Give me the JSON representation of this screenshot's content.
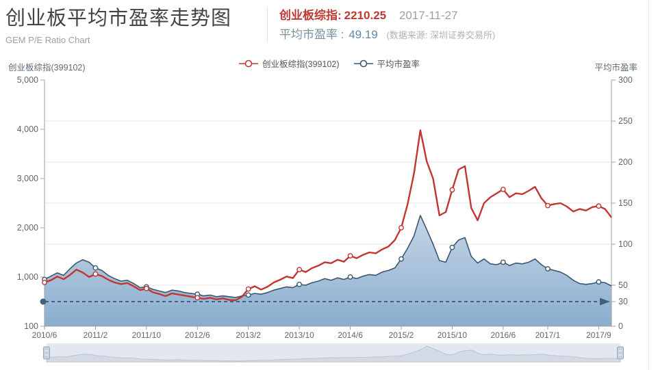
{
  "header": {
    "title": "创业板平均市盈率走势图",
    "subtitle": "GEM P/E Ratio Chart",
    "index_label": "创业板综指:",
    "index_value": "2210.25",
    "date": "2017-11-27",
    "pe_label": "平均市盈率 :",
    "pe_value": "49.19",
    "source": "(数据来源: 深圳证券交易所)"
  },
  "legend": [
    {
      "name": "创业板综指(399102)",
      "color": "#c23531"
    },
    {
      "name": "平均市盈率",
      "color": "#3a5670"
    }
  ],
  "axes": {
    "left_title": "创业板综指(399102)",
    "right_title": "平均市盈率",
    "left_ticks": [
      {
        "label": "5,000",
        "value": 5000
      },
      {
        "label": "4,000",
        "value": 4000
      },
      {
        "label": "3,000",
        "value": 3000
      },
      {
        "label": "2,000",
        "value": 2000
      },
      {
        "label": "1,000",
        "value": 1000
      },
      {
        "label": "100",
        "value": 100
      }
    ],
    "right_ticks": [
      {
        "label": "300",
        "value": 300
      },
      {
        "label": "250",
        "value": 250
      },
      {
        "label": "200",
        "value": 200
      },
      {
        "label": "150",
        "value": 150
      },
      {
        "label": "100",
        "value": 100
      },
      {
        "label": "50",
        "value": 50
      },
      {
        "label": "0",
        "value": 0
      }
    ],
    "right_special_tick": {
      "label": "30",
      "value": 30
    },
    "x_ticks": [
      {
        "month": 0,
        "label": "2010/6"
      },
      {
        "month": 8,
        "label": "2011/2"
      },
      {
        "month": 16,
        "label": "2011/10"
      },
      {
        "month": 24,
        "label": "2012/6"
      },
      {
        "month": 32,
        "label": "2013/2"
      },
      {
        "month": 40,
        "label": "2013/10"
      },
      {
        "month": 48,
        "label": "2014/6"
      },
      {
        "month": 56,
        "label": "2015/2"
      },
      {
        "month": 64,
        "label": "2015/10"
      },
      {
        "month": 72,
        "label": "2016/6"
      },
      {
        "month": 79,
        "label": "2017/1"
      },
      {
        "month": 87,
        "label": "2017/9"
      }
    ]
  },
  "chart_data": {
    "type": "line",
    "title": "创业板平均市盈率走势图",
    "x_start": "2010/6",
    "x_end": "2017/11",
    "x_interval": "month",
    "points": 90,
    "series": [
      {
        "name": "创业板综指(399102)",
        "axis": "left",
        "color": "#c23531",
        "values": [
          900,
          940,
          1010,
          960,
          1040,
          1150,
          1090,
          1000,
          1060,
          1020,
          950,
          900,
          870,
          890,
          830,
          760,
          790,
          720,
          690,
          650,
          700,
          680,
          660,
          640,
          620,
          600,
          620,
          590,
          610,
          580,
          575,
          640,
          780,
          830,
          770,
          820,
          900,
          950,
          1010,
          980,
          1150,
          1100,
          1180,
          1230,
          1300,
          1280,
          1350,
          1310,
          1430,
          1380,
          1450,
          1500,
          1480,
          1560,
          1620,
          1750,
          2000,
          2480,
          3100,
          3980,
          3350,
          3000,
          2250,
          2320,
          2770,
          3180,
          3250,
          2400,
          2150,
          2500,
          2620,
          2700,
          2780,
          2620,
          2700,
          2680,
          2750,
          2830,
          2600,
          2450,
          2480,
          2500,
          2430,
          2330,
          2380,
          2350,
          2420,
          2440,
          2380,
          2210.25
        ]
      },
      {
        "name": "平均市盈率",
        "axis": "right",
        "color": "#3a5670",
        "area": true,
        "values": [
          57,
          61,
          65,
          62,
          70,
          77,
          81,
          78,
          71,
          68,
          62,
          58,
          55,
          56,
          52,
          47,
          48,
          45,
          43,
          41,
          44,
          43,
          41,
          40,
          39,
          37,
          38,
          36,
          37,
          36,
          35,
          37,
          38,
          40,
          39,
          41,
          44,
          46,
          48,
          47,
          51,
          50,
          53,
          55,
          58,
          56,
          59,
          57,
          60,
          58,
          61,
          63,
          62,
          66,
          68,
          71,
          82,
          95,
          110,
          135,
          118,
          100,
          80,
          78,
          96,
          105,
          108,
          85,
          77,
          82,
          76,
          75,
          78,
          74,
          77,
          76,
          78,
          82,
          75,
          70,
          68,
          66,
          62,
          56,
          52,
          51,
          52,
          54,
          53,
          49.19
        ]
      }
    ],
    "marker_indices": [
      0,
      8,
      16,
      24,
      32,
      40,
      48,
      56,
      64,
      72,
      79,
      87
    ],
    "reference_line": {
      "axis": "right",
      "value": 30
    },
    "y_left_ticks": [
      5000,
      4000,
      3000,
      2000,
      1000,
      100
    ],
    "y_right_range": [
      0,
      300
    ],
    "grid": true,
    "legend_position": "top-center"
  },
  "colors": {
    "red_line": "#c23531",
    "navy_line": "#3a5670",
    "area_top": "#e9eff5",
    "area_mid": "#c3d4e4",
    "area_bottom": "#84a9cc",
    "grid": "#e6e6e6",
    "axis": "#9aa0a6",
    "tick_text": "#666666",
    "ref_line": "#44607c",
    "nav_band": "#e3e8f0",
    "nav_area": "#d3dae5",
    "nav_line": "#bac4d2",
    "nav_handle": "#c6cfdd",
    "nav_handle_border": "#98a6ba"
  }
}
